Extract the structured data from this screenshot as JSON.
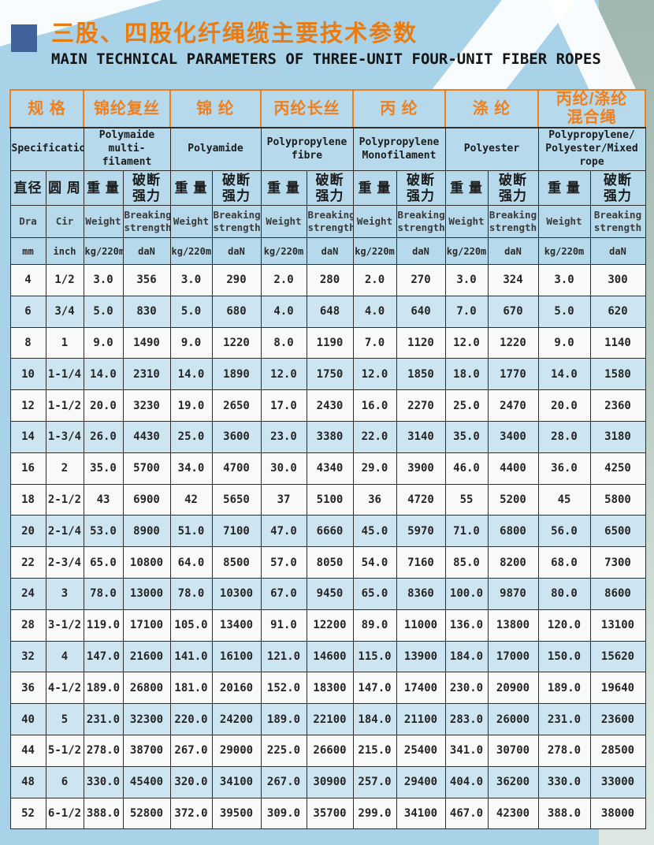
{
  "header": {
    "title_zh": "三股、四股化纤绳缆主要技术参数",
    "title_en": "MAIN TECHNICAL PARAMETERS OF THREE-UNIT FOUR-UNIT FIBER ROPES"
  },
  "colors": {
    "page_background": "#a7d2e8",
    "header_orange": "#ee7f1c",
    "title_orange": "#e87c12",
    "title_square_blue": "#40629b",
    "cell_blue": "#b6daec",
    "row_shaded_blue": "#cde5f1",
    "row_white": "#f7faf9",
    "border_dark": "#2e2d2b",
    "edge_strip_green": "#9fb7ae"
  },
  "table": {
    "groups": [
      {
        "zh": "规 格",
        "en": "Specification"
      },
      {
        "zh": "锦纶复丝",
        "en": "Polymaide multi-\nfilament"
      },
      {
        "zh": "锦 纶",
        "en": "Polyamide"
      },
      {
        "zh": "丙纶长丝",
        "en": "Polypropylene\nfibre"
      },
      {
        "zh": "丙 纶",
        "en": "Polypropylene\nMonofilament"
      },
      {
        "zh": "涤 纶",
        "en": "Polyester"
      },
      {
        "zh": "丙纶/涤纶\n混合绳",
        "en": "Polypropylene/\nPolyester/Mixed\nrope"
      }
    ],
    "spec": {
      "dia": {
        "zh": "直径",
        "en": "Dra",
        "unit": "mm"
      },
      "cir": {
        "zh": "圆 周",
        "en": "Cir",
        "unit": "inch"
      }
    },
    "metric": {
      "weight": {
        "zh": "重 量",
        "en": "Weight",
        "unit": "kg/220m"
      },
      "breaking": {
        "zh": "破断\n强力",
        "en": "Breaking\nstrength",
        "unit": "daN"
      }
    },
    "rows": [
      {
        "shaded": false,
        "cells": [
          "4",
          "1/2",
          "3.0",
          "356",
          "3.0",
          "290",
          "2.0",
          "280",
          "2.0",
          "270",
          "3.0",
          "324",
          "3.0",
          "300"
        ]
      },
      {
        "shaded": true,
        "cells": [
          "6",
          "3/4",
          "5.0",
          "830",
          "5.0",
          "680",
          "4.0",
          "648",
          "4.0",
          "640",
          "7.0",
          "670",
          "5.0",
          "620"
        ]
      },
      {
        "shaded": false,
        "cells": [
          "8",
          "1",
          "9.0",
          "1490",
          "9.0",
          "1220",
          "8.0",
          "1190",
          "7.0",
          "1120",
          "12.0",
          "1220",
          "9.0",
          "1140"
        ]
      },
      {
        "shaded": true,
        "cells": [
          "10",
          "1-1/4",
          "14.0",
          "2310",
          "14.0",
          "1890",
          "12.0",
          "1750",
          "12.0",
          "1850",
          "18.0",
          "1770",
          "14.0",
          "1580"
        ]
      },
      {
        "shaded": false,
        "cells": [
          "12",
          "1-1/2",
          "20.0",
          "3230",
          "19.0",
          "2650",
          "17.0",
          "2430",
          "16.0",
          "2270",
          "25.0",
          "2470",
          "20.0",
          "2360"
        ]
      },
      {
        "shaded": true,
        "cells": [
          "14",
          "1-3/4",
          "26.0",
          "4430",
          "25.0",
          "3600",
          "23.0",
          "3380",
          "22.0",
          "3140",
          "35.0",
          "3400",
          "28.0",
          "3180"
        ]
      },
      {
        "shaded": false,
        "cells": [
          "16",
          "2",
          "35.0",
          "5700",
          "34.0",
          "4700",
          "30.0",
          "4340",
          "29.0",
          "3900",
          "46.0",
          "4400",
          "36.0",
          "4250"
        ]
      },
      {
        "shaded": false,
        "cells": [
          "18",
          "2-1/2",
          "43",
          "6900",
          "42",
          "5650",
          "37",
          "5100",
          "36",
          "4720",
          "55",
          "5200",
          "45",
          "5800"
        ]
      },
      {
        "shaded": true,
        "cells": [
          "20",
          "2-1/4",
          "53.0",
          "8900",
          "51.0",
          "7100",
          "47.0",
          "6660",
          "45.0",
          "5970",
          "71.0",
          "6800",
          "56.0",
          "6500"
        ]
      },
      {
        "shaded": false,
        "cells": [
          "22",
          "2-3/4",
          "65.0",
          "10800",
          "64.0",
          "8500",
          "57.0",
          "8050",
          "54.0",
          "7160",
          "85.0",
          "8200",
          "68.0",
          "7300"
        ]
      },
      {
        "shaded": true,
        "cells": [
          "24",
          "3",
          "78.0",
          "13000",
          "78.0",
          "10300",
          "67.0",
          "9450",
          "65.0",
          "8360",
          "100.0",
          "9870",
          "80.0",
          "8600"
        ]
      },
      {
        "shaded": false,
        "cells": [
          "28",
          "3-1/2",
          "119.0",
          "17100",
          "105.0",
          "13400",
          "91.0",
          "12200",
          "89.0",
          "11000",
          "136.0",
          "13800",
          "120.0",
          "13100"
        ]
      },
      {
        "shaded": true,
        "cells": [
          "32",
          "4",
          "147.0",
          "21600",
          "141.0",
          "16100",
          "121.0",
          "14600",
          "115.0",
          "13900",
          "184.0",
          "17000",
          "150.0",
          "15620"
        ]
      },
      {
        "shaded": false,
        "cells": [
          "36",
          "4-1/2",
          "189.0",
          "26800",
          "181.0",
          "20160",
          "152.0",
          "18300",
          "147.0",
          "17400",
          "230.0",
          "20900",
          "189.0",
          "19640"
        ]
      },
      {
        "shaded": true,
        "cells": [
          "40",
          "5",
          "231.0",
          "32300",
          "220.0",
          "24200",
          "189.0",
          "22100",
          "184.0",
          "21100",
          "283.0",
          "26000",
          "231.0",
          "23600"
        ]
      },
      {
        "shaded": false,
        "cells": [
          "44",
          "5-1/2",
          "278.0",
          "38700",
          "267.0",
          "29000",
          "225.0",
          "26600",
          "215.0",
          "25400",
          "341.0",
          "30700",
          "278.0",
          "28500"
        ]
      },
      {
        "shaded": true,
        "cells": [
          "48",
          "6",
          "330.0",
          "45400",
          "320.0",
          "34100",
          "267.0",
          "30900",
          "257.0",
          "29400",
          "404.0",
          "36200",
          "330.0",
          "33000"
        ]
      },
      {
        "shaded": false,
        "cells": [
          "52",
          "6-1/2",
          "388.0",
          "52800",
          "372.0",
          "39500",
          "309.0",
          "35700",
          "299.0",
          "34100",
          "467.0",
          "42300",
          "388.0",
          "38000"
        ]
      }
    ]
  }
}
